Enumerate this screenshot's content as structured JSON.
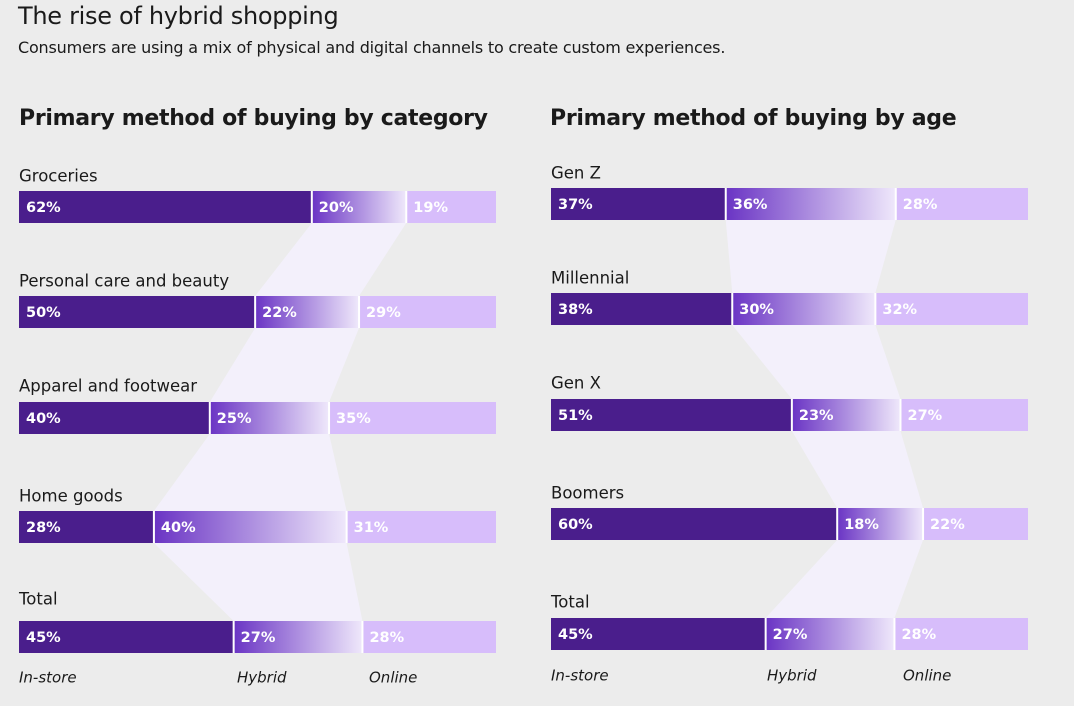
{
  "title": "The rise of hybrid shopping",
  "subtitle": "Consumers are using a mix of physical and digital channels to create custom experiences.",
  "colors": {
    "in_store": "#4a1e8c",
    "hybrid_start": "#6a34c4",
    "hybrid_end": "#efe8fb",
    "online": "#d7bdfb",
    "flow_band": "#f3f0fb",
    "value_text": "#ffffff",
    "background": "#ececec"
  },
  "chart_data": [
    {
      "type": "bar",
      "orientation": "horizontal",
      "stacked": true,
      "title": "Primary method of buying by category",
      "categories": [
        "Groceries",
        "Personal care and beauty",
        "Apparel and footwear",
        "Home goods",
        "Total"
      ],
      "series": [
        {
          "name": "In-store",
          "values": [
            62,
            50,
            40,
            28,
            45
          ]
        },
        {
          "name": "Hybrid",
          "values": [
            20,
            22,
            25,
            40,
            27
          ]
        },
        {
          "name": "Online",
          "values": [
            19,
            29,
            35,
            31,
            28
          ]
        }
      ],
      "value_labels": [
        [
          "62%",
          "20%",
          "19%"
        ],
        [
          "50%",
          "22%",
          "29%"
        ],
        [
          "40%",
          "25%",
          "35%"
        ],
        [
          "28%",
          "40%",
          "31%"
        ],
        [
          "45%",
          "27%",
          "28%"
        ]
      ],
      "legend_labels": [
        "In-store",
        "Hybrid",
        "Online"
      ],
      "legend_position": "bottom"
    },
    {
      "type": "bar",
      "orientation": "horizontal",
      "stacked": true,
      "title": "Primary method of buying by age",
      "categories": [
        "Gen Z",
        "Millennial",
        "Gen X",
        "Boomers",
        "Total"
      ],
      "series": [
        {
          "name": "In-store",
          "values": [
            37,
            38,
            51,
            60,
            45
          ]
        },
        {
          "name": "Hybrid",
          "values": [
            36,
            30,
            23,
            18,
            27
          ]
        },
        {
          "name": "Online",
          "values": [
            28,
            32,
            27,
            22,
            28
          ]
        }
      ],
      "value_labels": [
        [
          "37%",
          "36%",
          "28%"
        ],
        [
          "38%",
          "30%",
          "32%"
        ],
        [
          "51%",
          "23%",
          "27%"
        ],
        [
          "60%",
          "18%",
          "22%"
        ],
        [
          "45%",
          "27%",
          "28%"
        ]
      ],
      "legend_labels": [
        "In-store",
        "Hybrid",
        "Online"
      ],
      "legend_position": "bottom"
    }
  ]
}
